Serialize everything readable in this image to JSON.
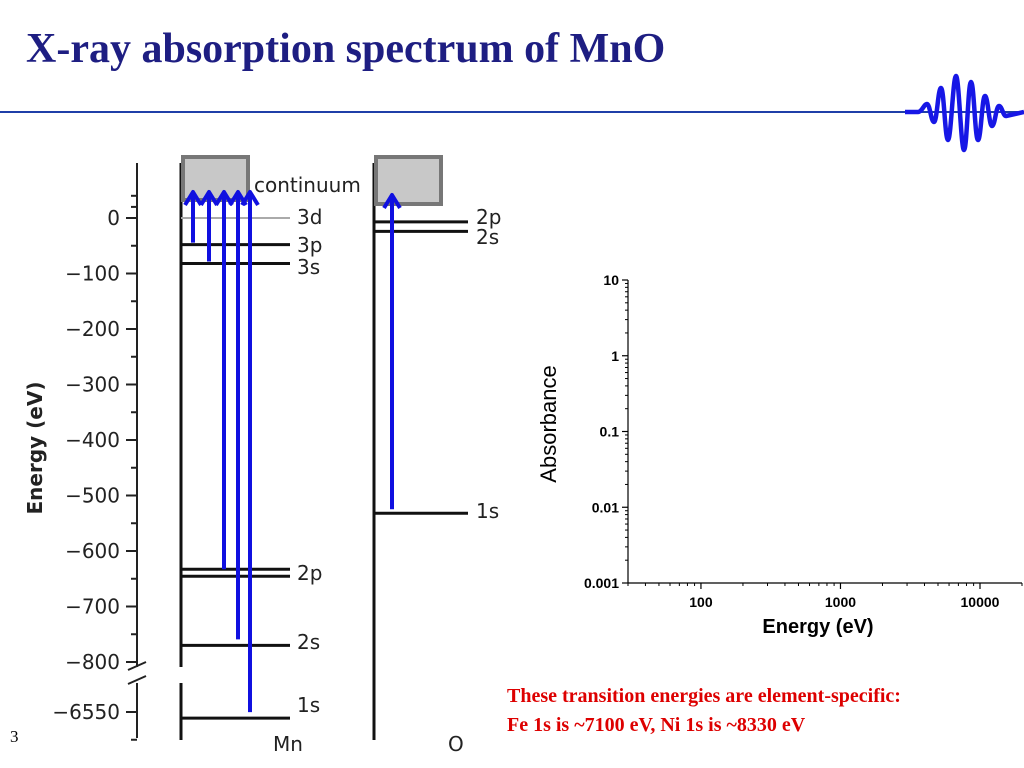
{
  "slide": {
    "title": "X-ray absorption spectrum of MnO",
    "slide_number": "3",
    "note_lines": [
      "These transition energies are element-specific:",
      "Fe 1s is ~7100 eV, Ni 1s is ~8330 eV"
    ]
  },
  "diagram": {
    "y_axis_title": "Energy (eV)",
    "y_ticks": [
      "0",
      "−100",
      "−200",
      "−300",
      "−400",
      "−500",
      "−600",
      "−700",
      "−800",
      "−6550"
    ],
    "continuum_label": "continuum",
    "mn": {
      "label": "Mn",
      "levels": [
        {
          "name": "3d",
          "energy": 0
        },
        {
          "name": "3p",
          "energy": -48
        },
        {
          "name": "3s",
          "energy": -82
        },
        {
          "name": "2p",
          "energy": -640
        },
        {
          "name": "2s",
          "energy": -770
        },
        {
          "name": "1s",
          "energy": -6539
        }
      ]
    },
    "o": {
      "label": "O",
      "levels": [
        {
          "name": "2p",
          "energy": -7
        },
        {
          "name": "2s",
          "energy": -24
        },
        {
          "name": "1s",
          "energy": -532
        }
      ]
    },
    "colors": {
      "arrow": "#1010e0",
      "continuum_fill": "#c8c8c8",
      "continuum_border": "#777777",
      "level_3d": "#aaaaaa"
    }
  },
  "chart_data": {
    "type": "line",
    "title": "",
    "xlabel": "Energy (eV)",
    "ylabel": "Absorbance",
    "x_scale": "log",
    "y_scale": "log",
    "xlim": [
      30,
      20000
    ],
    "ylim": [
      0.001,
      10
    ],
    "x_ticks": [
      "100",
      "1000",
      "10000"
    ],
    "y_ticks": [
      "10",
      "1",
      "0.1",
      "0.01",
      "0.001"
    ],
    "series": []
  }
}
